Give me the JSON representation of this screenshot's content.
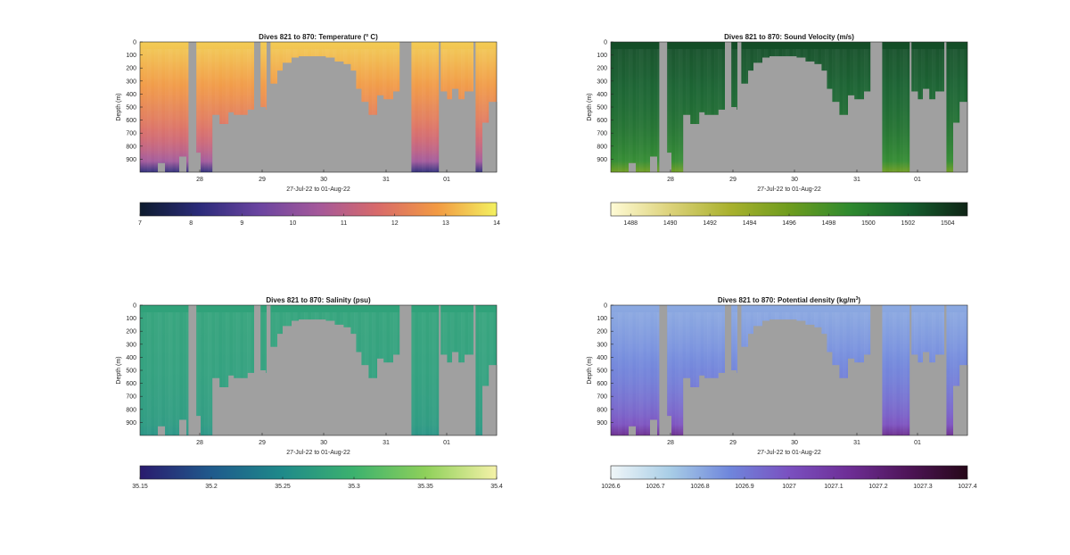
{
  "chart_data": [
    {
      "type": "heatmap",
      "title": "Dives 821 to 870: Temperature (° C)",
      "title_parts": [
        "Dives 821 to 870: Temperature (",
        "o",
        " C)"
      ],
      "xlabel": "27-Jul-22 to 01-Aug-22",
      "ylabel": "Depth (m)",
      "x_tick_labels": [
        "28",
        "29",
        "30",
        "31",
        "01"
      ],
      "y_tick_labels": [
        "0",
        "100",
        "200",
        "300",
        "400",
        "500",
        "600",
        "700",
        "800",
        "900"
      ],
      "ylim": [
        0,
        1000
      ],
      "colorbar": {
        "range": [
          7,
          14
        ],
        "tick_labels": [
          "7",
          "8",
          "9",
          "10",
          "11",
          "12",
          "13",
          "14"
        ],
        "colors": [
          "#0d1b2e",
          "#2b2b7a",
          "#6a44a0",
          "#a4589a",
          "#d86a6a",
          "#f29a43",
          "#f3f160"
        ]
      },
      "surface_value": 13.5,
      "deep_value": 8.2,
      "colors": {
        "no_data": "#a0a0a0"
      }
    },
    {
      "type": "heatmap",
      "title": "Dives 821 to 870: Sound Velocity (m/s)",
      "title_parts": [
        "Dives 821 to 870: Sound Velocity (m/s)",
        "",
        ""
      ],
      "xlabel": "27-Jul-22 to 01-Aug-22",
      "ylabel": "Depth (m)",
      "x_tick_labels": [
        "28",
        "29",
        "30",
        "31",
        "01"
      ],
      "y_tick_labels": [
        "0",
        "100",
        "200",
        "300",
        "400",
        "500",
        "600",
        "700",
        "800",
        "900"
      ],
      "ylim": [
        0,
        1000
      ],
      "colorbar": {
        "range": [
          1487,
          1505
        ],
        "tick_labels": [
          "1488",
          "1490",
          "1492",
          "1494",
          "1496",
          "1498",
          "1500",
          "1502",
          "1504"
        ],
        "colors": [
          "#fffbd6",
          "#dcd27a",
          "#a9b12e",
          "#6e9c1e",
          "#2f8a2e",
          "#15602e",
          "#0f2416"
        ]
      },
      "surface_value": 1503,
      "deep_value": 1496,
      "colors": {
        "no_data": "#a0a0a0"
      }
    },
    {
      "type": "heatmap",
      "title": "Dives 821 to 870: Salinity (psu)",
      "title_parts": [
        "Dives 821 to 870: Salinity (psu)",
        "",
        ""
      ],
      "xlabel": "27-Jul-22 to 01-Aug-22",
      "ylabel": "Depth (m)",
      "x_tick_labels": [
        "28",
        "29",
        "30",
        "31",
        "01"
      ],
      "y_tick_labels": [
        "0",
        "100",
        "200",
        "300",
        "400",
        "500",
        "600",
        "700",
        "800",
        "900"
      ],
      "ylim": [
        0,
        1000
      ],
      "colorbar": {
        "range": [
          35.15,
          35.4
        ],
        "tick_labels": [
          "35.15",
          "35.2",
          "35.25",
          "35.3",
          "35.35",
          "35.4"
        ],
        "colors": [
          "#2a1b6e",
          "#1f5a8c",
          "#1f8a8a",
          "#3cb26e",
          "#8ed05a",
          "#f5f2a8"
        ]
      },
      "surface_value": 35.28,
      "deep_value": 35.26,
      "colors": {
        "no_data": "#a0a0a0"
      }
    },
    {
      "type": "heatmap",
      "title": "Dives 821 to 870: Potential density (kg/m³)",
      "title_parts": [
        "Dives 821 to 870: Potential density (kg/m",
        "3",
        ")"
      ],
      "xlabel": "27-Jul-22 to 01-Aug-22",
      "ylabel": "Depth (m)",
      "x_tick_labels": [
        "28",
        "29",
        "30",
        "31",
        "01"
      ],
      "y_tick_labels": [
        "0",
        "100",
        "200",
        "300",
        "400",
        "500",
        "600",
        "700",
        "800",
        "900"
      ],
      "ylim": [
        0,
        1000
      ],
      "colorbar": {
        "range": [
          1026.6,
          1027.4
        ],
        "tick_labels": [
          "1026.6",
          "1026.7",
          "1026.8",
          "1026.9",
          "1027",
          "1027.1",
          "1027.2",
          "1027.3",
          "1027.4"
        ],
        "colors": [
          "#f0f6f8",
          "#a8cde6",
          "#6f86dc",
          "#7a50c0",
          "#6e2e96",
          "#4e1458",
          "#260818"
        ]
      },
      "surface_value": 1026.8,
      "deep_value": 1027.15,
      "colors": {
        "no_data": "#a0a0a0"
      }
    }
  ]
}
